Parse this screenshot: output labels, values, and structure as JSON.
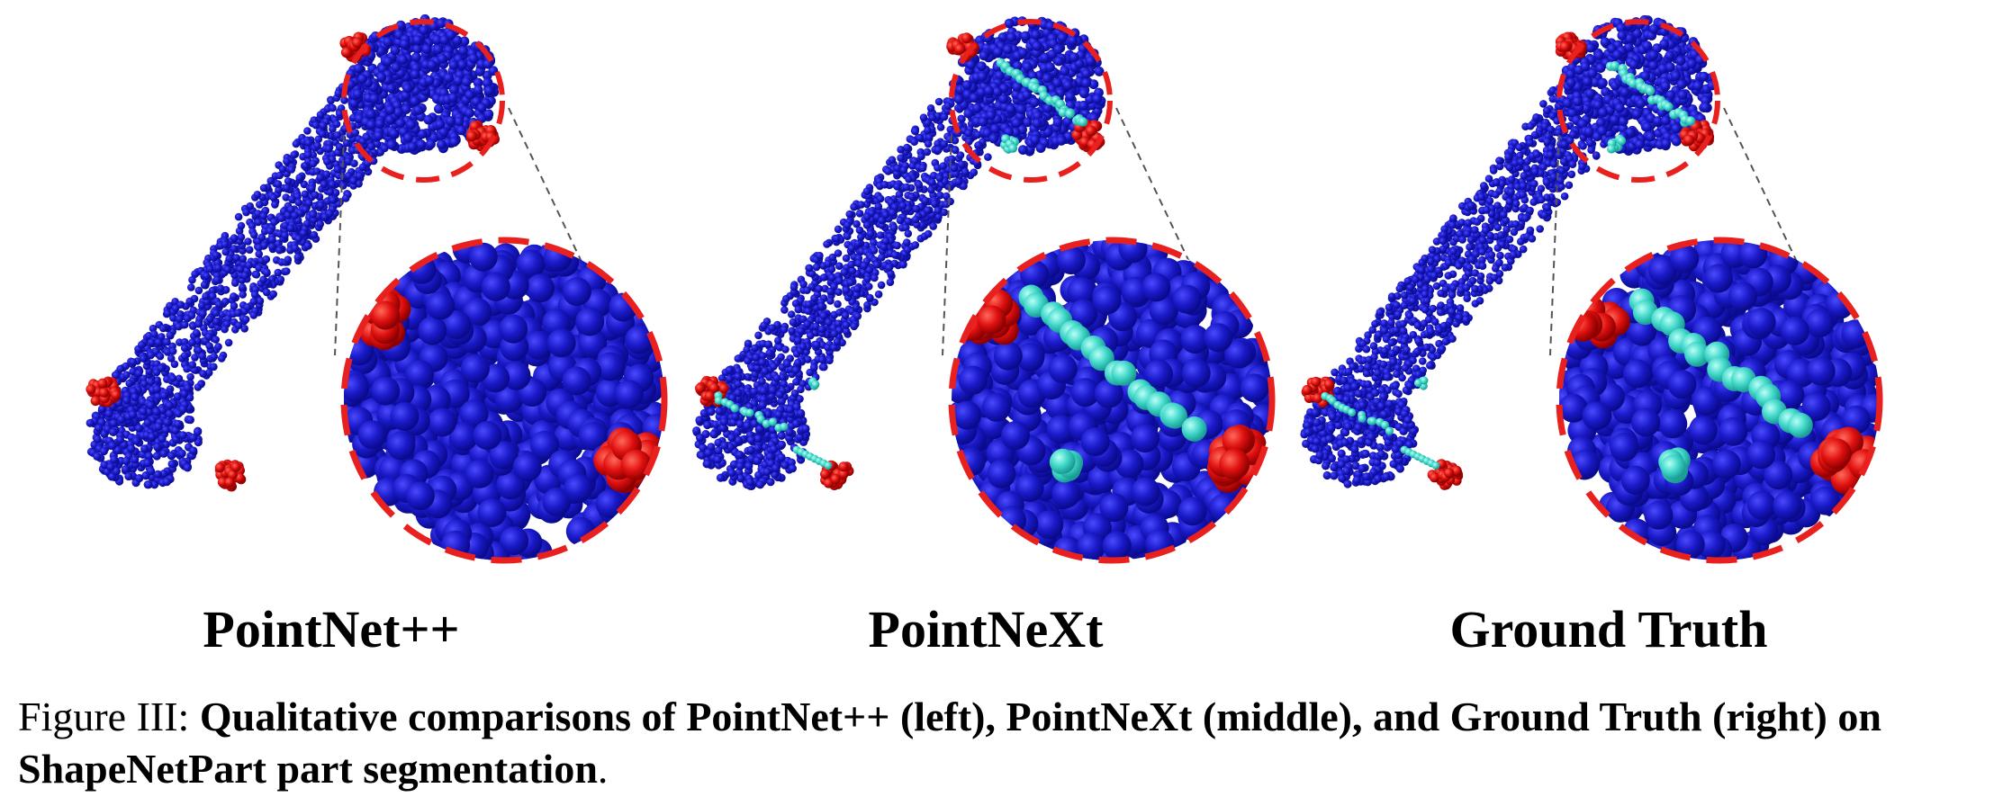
{
  "colors": {
    "body": "#1a1ac8",
    "body_dark": "#0a0a8c",
    "cyan": "#3fd6c8",
    "red": "#e01010",
    "dashed_circle": "#e8201e",
    "leader": "#555555"
  },
  "panels": [
    {
      "label": "PointNet++",
      "has_cyan": true,
      "cyan_style": "sparse"
    },
    {
      "label": "PointNeXt",
      "has_cyan": true,
      "cyan_style": "dense"
    },
    {
      "label": "Ground Truth",
      "has_cyan": true,
      "cyan_style": "dense"
    }
  ],
  "caption": {
    "prefix": "Figure III: ",
    "body": "Qualitative comparisons of PointNet++ (left), PointNeXt (middle), and Ground Truth (right) on ShapeNetPart part segmentation",
    "end": "."
  }
}
